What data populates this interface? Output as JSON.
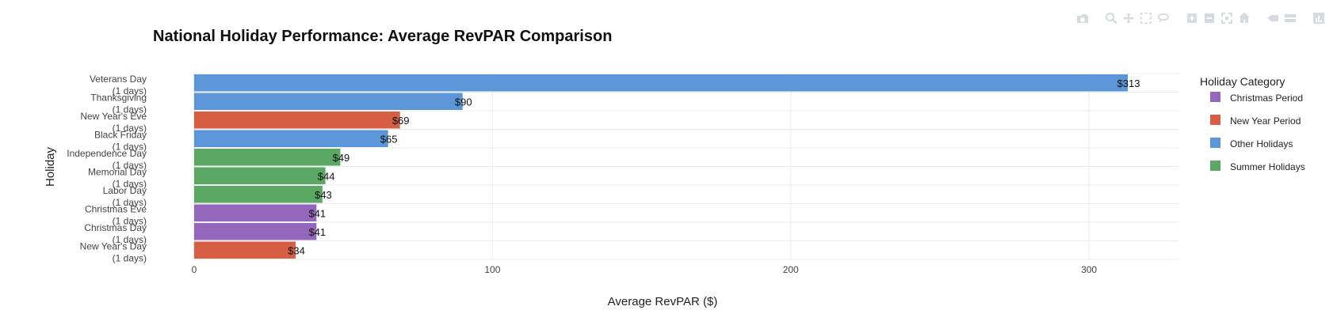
{
  "chart_data": {
    "type": "bar",
    "orientation": "horizontal",
    "title": "National Holiday Performance: Average RevPAR Comparison",
    "xlabel": "Average RevPAR ($)",
    "ylabel": "Holiday",
    "xlim": [
      0,
      330
    ],
    "x_ticks": [
      0,
      100,
      200,
      300
    ],
    "grid": true,
    "legend": {
      "title": "Holiday Category",
      "placement": "right",
      "items": [
        {
          "name": "Christmas Period",
          "color": "#9467bd"
        },
        {
          "name": "New Year Period",
          "color": "#d65f43"
        },
        {
          "name": "Other Holidays",
          "color": "#5b96d8"
        },
        {
          "name": "Summer Holidays",
          "color": "#5aa864"
        }
      ]
    },
    "bars": [
      {
        "holiday": "Veterans Day",
        "days": "(1 days)",
        "value": 313,
        "label": "$313",
        "category": "Other Holidays"
      },
      {
        "holiday": "Thanksgiving",
        "days": "(1 days)",
        "value": 90,
        "label": "$90",
        "category": "Other Holidays"
      },
      {
        "holiday": "New Year's Eve",
        "days": "(1 days)",
        "value": 69,
        "label": "$69",
        "category": "New Year Period"
      },
      {
        "holiday": "Black Friday",
        "days": "(1 days)",
        "value": 65,
        "label": "$65",
        "category": "Other Holidays"
      },
      {
        "holiday": "Independence Day",
        "days": "(1 days)",
        "value": 49,
        "label": "$49",
        "category": "Summer Holidays"
      },
      {
        "holiday": "Memorial Day",
        "days": "(1 days)",
        "value": 44,
        "label": "$44",
        "category": "Summer Holidays"
      },
      {
        "holiday": "Labor Day",
        "days": "(1 days)",
        "value": 43,
        "label": "$43",
        "category": "Summer Holidays"
      },
      {
        "holiday": "Christmas Eve",
        "days": "(1 days)",
        "value": 41,
        "label": "$41",
        "category": "Christmas Period"
      },
      {
        "holiday": "Christmas Day",
        "days": "(1 days)",
        "value": 41,
        "label": "$41",
        "category": "Christmas Period"
      },
      {
        "holiday": "New Year's Day",
        "days": "(1 days)",
        "value": 34,
        "label": "$34",
        "category": "New Year Period"
      }
    ]
  },
  "modebar": {
    "groups": [
      [
        "camera-icon"
      ],
      [
        "zoom-icon",
        "pan-icon",
        "box-select-icon",
        "lasso-select-icon"
      ],
      [
        "zoom-in-icon",
        "zoom-out-icon",
        "autoscale-icon",
        "reset-axes-icon"
      ],
      [
        "spike-lines-icon",
        "compare-hover-icon"
      ],
      [
        "plotly-logo-icon"
      ]
    ]
  }
}
